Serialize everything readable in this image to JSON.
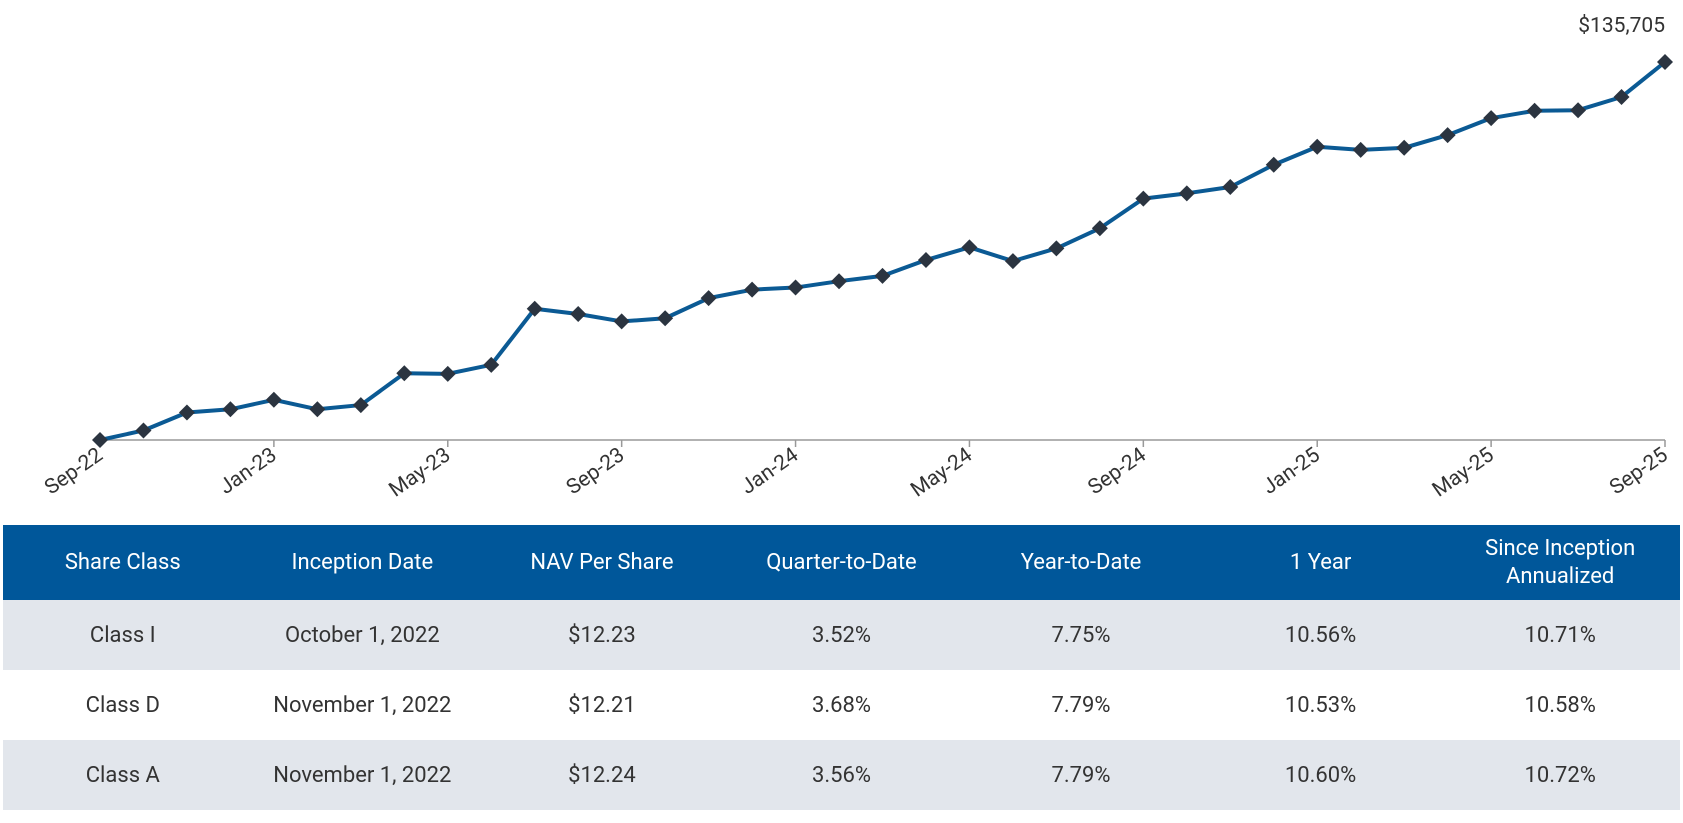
{
  "chart_data": {
    "type": "line",
    "categories": [
      "Sep-22",
      null,
      null,
      null,
      "Jan-23",
      null,
      null,
      null,
      "May-23",
      null,
      null,
      null,
      "Sep-23",
      null,
      null,
      null,
      "Jan-24",
      null,
      null,
      null,
      "May-24",
      null,
      null,
      null,
      "Sep-24",
      null,
      null,
      null,
      "Jan-25",
      null,
      null,
      null,
      "May-25",
      null,
      null,
      null,
      "Sep-25"
    ],
    "values": [
      100000,
      100900,
      102600,
      102900,
      103800,
      102900,
      103300,
      106300,
      106250,
      107100,
      112400,
      111900,
      111200,
      111500,
      113400,
      114200,
      114400,
      115000,
      115500,
      117000,
      118200,
      116900,
      118100,
      120000,
      122800,
      123300,
      123900,
      126000,
      127700,
      127400,
      127600,
      128800,
      130400,
      131100,
      131150,
      132400,
      135705
    ],
    "value_labels": [
      null,
      null,
      null,
      null,
      null,
      null,
      null,
      null,
      null,
      null,
      null,
      null,
      null,
      null,
      null,
      null,
      null,
      null,
      null,
      null,
      null,
      null,
      null,
      null,
      null,
      null,
      null,
      null,
      null,
      null,
      null,
      null,
      null,
      null,
      null,
      null,
      "$135,705"
    ],
    "color": "#0b5a94",
    "marker_color": "#2b3440",
    "ylim": [
      100000,
      135705
    ]
  },
  "table": {
    "columns": [
      "Share Class",
      "Inception Date",
      "NAV Per Share",
      "Quarter-to-Date",
      "Year-to-Date",
      "1 Year",
      "Since Inception Annualized"
    ],
    "rows": [
      [
        "Class I",
        "October 1, 2022",
        "$12.23",
        "3.52%",
        "7.75%",
        "10.56%",
        "10.71%"
      ],
      [
        "Class D",
        "November 1, 2022",
        "$12.21",
        "3.68%",
        "7.79%",
        "10.53%",
        "10.58%"
      ],
      [
        "Class A",
        "November 1, 2022",
        "$12.24",
        "3.56%",
        "7.79%",
        "10.60%",
        "10.72%"
      ]
    ]
  }
}
